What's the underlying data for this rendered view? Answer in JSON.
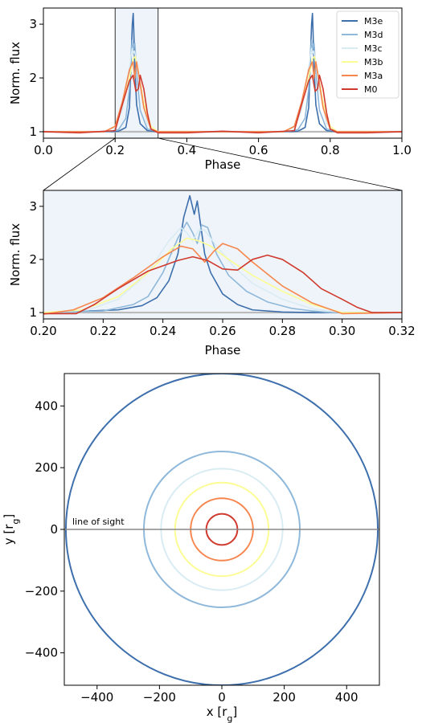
{
  "chart_data": [
    {
      "id": "full",
      "type": "line",
      "xlabel": "Phase",
      "ylabel": "Norm. flux",
      "xlim": [
        0.0,
        1.0
      ],
      "ylim": [
        0.88,
        3.3
      ],
      "xticks": [
        0.0,
        0.2,
        0.4,
        0.6,
        0.8,
        1.0
      ],
      "xtick_labels": [
        "0.0",
        "0.2",
        "0.4",
        "0.6",
        "0.8",
        "1.0"
      ],
      "yticks": [
        1,
        2,
        3
      ],
      "ytick_labels": [
        "1",
        "2",
        "3"
      ],
      "highlight_span": [
        0.2,
        0.32
      ],
      "legend": "top-right",
      "series": [
        {
          "name": "M3e",
          "color": "#3d6fad",
          "x": [
            0,
            0.18,
            0.21,
            0.23,
            0.24,
            0.245,
            0.248,
            0.2505,
            0.252,
            0.255,
            0.26,
            0.27,
            0.29,
            0.32,
            0.5,
            0.68,
            0.71,
            0.73,
            0.74,
            0.745,
            0.748,
            0.7505,
            0.752,
            0.755,
            0.76,
            0.77,
            0.79,
            0.82,
            1.0
          ],
          "y": [
            1,
            1,
            1.01,
            1.08,
            1.45,
            2.4,
            3.0,
            3.2,
            2.9,
            2.2,
            1.5,
            1.15,
            1.02,
            1,
            1,
            1,
            1.01,
            1.08,
            1.45,
            2.4,
            3.0,
            3.2,
            2.9,
            2.2,
            1.5,
            1.15,
            1.02,
            1,
            1
          ]
        },
        {
          "name": "M3d",
          "color": "#8fb8da",
          "x": [
            0,
            0.18,
            0.21,
            0.23,
            0.24,
            0.245,
            0.248,
            0.25,
            0.252,
            0.255,
            0.26,
            0.27,
            0.29,
            0.32,
            0.5,
            0.68,
            0.71,
            0.73,
            0.74,
            0.745,
            0.748,
            0.75,
            0.752,
            0.755,
            0.76,
            0.77,
            0.79,
            0.82,
            1.0
          ],
          "y": [
            1,
            1,
            1.04,
            1.25,
            1.8,
            2.5,
            2.7,
            2.45,
            2.6,
            2.65,
            2.1,
            1.4,
            1.05,
            1,
            1,
            1,
            1.04,
            1.25,
            1.8,
            2.5,
            2.7,
            2.45,
            2.6,
            2.65,
            2.1,
            1.4,
            1.05,
            1,
            1
          ]
        },
        {
          "name": "M3c",
          "color": "#d9ecf4",
          "x": [
            0,
            0.17,
            0.2,
            0.22,
            0.24,
            0.248,
            0.25,
            0.254,
            0.26,
            0.27,
            0.29,
            0.32,
            0.5,
            0.67,
            0.7,
            0.72,
            0.74,
            0.748,
            0.75,
            0.754,
            0.76,
            0.77,
            0.79,
            0.82,
            1.0
          ],
          "y": [
            1,
            1,
            1.08,
            1.4,
            2.2,
            2.55,
            2.45,
            2.5,
            2.3,
            1.8,
            1.15,
            1,
            1,
            1,
            1.08,
            1.4,
            2.2,
            2.55,
            2.45,
            2.5,
            2.3,
            1.8,
            1.15,
            1,
            1
          ]
        },
        {
          "name": "M3b",
          "color": "#fcfc95",
          "x": [
            0,
            0.17,
            0.2,
            0.22,
            0.24,
            0.25,
            0.256,
            0.265,
            0.28,
            0.3,
            0.32,
            0.5,
            0.67,
            0.7,
            0.72,
            0.74,
            0.75,
            0.756,
            0.765,
            0.78,
            0.8,
            0.82,
            1.0
          ],
          "y": [
            1,
            1,
            1.1,
            1.5,
            2.0,
            2.35,
            2.4,
            2.1,
            1.55,
            1.1,
            1,
            1,
            1,
            1.1,
            1.5,
            2.0,
            2.35,
            2.4,
            2.1,
            1.55,
            1.1,
            1,
            1
          ]
        },
        {
          "name": "M3a",
          "color": "#f7864e",
          "x": [
            0,
            0.17,
            0.2,
            0.22,
            0.24,
            0.25,
            0.255,
            0.26,
            0.27,
            0.28,
            0.3,
            0.32,
            0.5,
            0.67,
            0.7,
            0.72,
            0.74,
            0.75,
            0.755,
            0.76,
            0.77,
            0.78,
            0.8,
            0.82,
            1.0
          ],
          "y": [
            1,
            1,
            1.1,
            1.55,
            2.15,
            2.3,
            2.0,
            2.3,
            1.9,
            1.45,
            1.05,
            1,
            1,
            1,
            1.1,
            1.55,
            2.15,
            2.3,
            2.0,
            2.3,
            1.9,
            1.45,
            1.05,
            1,
            1
          ]
        },
        {
          "name": "M0",
          "color": "#d03a2e",
          "x": [
            0,
            0.1,
            0.2,
            0.22,
            0.24,
            0.25,
            0.258,
            0.265,
            0.27,
            0.28,
            0.29,
            0.3,
            0.32,
            0.4,
            0.5,
            0.6,
            0.7,
            0.72,
            0.74,
            0.75,
            0.758,
            0.765,
            0.77,
            0.78,
            0.79,
            0.8,
            0.82,
            0.9,
            1.0
          ],
          "y": [
            1,
            0.98,
            1.02,
            1.5,
            1.95,
            2.05,
            1.75,
            1.8,
            2.05,
            1.8,
            1.35,
            1.05,
            0.98,
            0.98,
            1.01,
            0.98,
            1.02,
            1.5,
            1.95,
            2.05,
            1.75,
            1.8,
            2.05,
            1.8,
            1.35,
            1.05,
            0.98,
            0.98,
            1
          ]
        }
      ]
    },
    {
      "id": "zoom",
      "type": "line",
      "xlabel": "Phase",
      "ylabel": "Norm. flux",
      "xlim": [
        0.2,
        0.32
      ],
      "ylim": [
        0.88,
        3.3
      ],
      "xticks": [
        0.2,
        0.22,
        0.24,
        0.26,
        0.28,
        0.3,
        0.32
      ],
      "xtick_labels": [
        "0.20",
        "0.22",
        "0.24",
        "0.26",
        "0.28",
        "0.30",
        "0.32"
      ],
      "yticks": [
        1,
        2,
        3
      ],
      "ytick_labels": [
        "1",
        "2",
        "3"
      ],
      "series": [
        {
          "name": "M3e",
          "color": "#3d6fad",
          "x": [
            0.2,
            0.225,
            0.233,
            0.238,
            0.242,
            0.245,
            0.247,
            0.249,
            0.2505,
            0.2515,
            0.2525,
            0.254,
            0.256,
            0.26,
            0.265,
            0.27,
            0.28,
            0.29,
            0.3,
            0.32
          ],
          "y": [
            1,
            1.05,
            1.13,
            1.28,
            1.6,
            2.1,
            2.8,
            3.2,
            2.85,
            3.1,
            2.7,
            2.1,
            1.75,
            1.35,
            1.15,
            1.05,
            1.01,
            1,
            1,
            1
          ]
        },
        {
          "name": "M3d",
          "color": "#8fb8da",
          "x": [
            0.2,
            0.22,
            0.23,
            0.235,
            0.24,
            0.245,
            0.248,
            0.25,
            0.2515,
            0.253,
            0.255,
            0.258,
            0.262,
            0.268,
            0.275,
            0.283,
            0.29,
            0.296,
            0.32
          ],
          "y": [
            1,
            1.03,
            1.15,
            1.3,
            1.75,
            2.4,
            2.7,
            2.5,
            2.3,
            2.65,
            2.6,
            2.1,
            1.7,
            1.4,
            1.2,
            1.08,
            1.03,
            1,
            1
          ]
        },
        {
          "name": "M3c",
          "color": "#d9ecf4",
          "x": [
            0.2,
            0.215,
            0.225,
            0.235,
            0.242,
            0.246,
            0.248,
            0.25,
            0.252,
            0.254,
            0.258,
            0.264,
            0.27,
            0.28,
            0.29,
            0.3,
            0.32
          ],
          "y": [
            1,
            1.05,
            1.25,
            1.75,
            2.35,
            2.6,
            2.5,
            2.35,
            2.55,
            2.55,
            2.25,
            1.85,
            1.55,
            1.25,
            1.07,
            1.0,
            1
          ]
        },
        {
          "name": "M3b",
          "color": "#fcfc95",
          "x": [
            0.2,
            0.213,
            0.225,
            0.235,
            0.243,
            0.248,
            0.252,
            0.256,
            0.262,
            0.27,
            0.28,
            0.29,
            0.3,
            0.32
          ],
          "y": [
            1,
            1.05,
            1.3,
            1.75,
            2.2,
            2.4,
            2.35,
            2.25,
            2.0,
            1.7,
            1.4,
            1.15,
            1.0,
            1
          ]
        },
        {
          "name": "M3a",
          "color": "#f7864e",
          "x": [
            0.2,
            0.21,
            0.22,
            0.23,
            0.24,
            0.246,
            0.25,
            0.254,
            0.257,
            0.26,
            0.265,
            0.27,
            0.28,
            0.29,
            0.3,
            0.32
          ],
          "y": [
            0.97,
            1.05,
            1.28,
            1.65,
            2.05,
            2.25,
            2.2,
            1.95,
            2.15,
            2.3,
            2.2,
            1.95,
            1.5,
            1.18,
            0.98,
            1
          ]
        },
        {
          "name": "M0",
          "color": "#d03a2e",
          "x": [
            0.2,
            0.211,
            0.217,
            0.225,
            0.235,
            0.245,
            0.25,
            0.255,
            0.26,
            0.265,
            0.27,
            0.275,
            0.28,
            0.287,
            0.293,
            0.3,
            0.305,
            0.31,
            0.32
          ],
          "y": [
            0.98,
            0.98,
            1.15,
            1.45,
            1.78,
            1.98,
            2.05,
            1.98,
            1.82,
            1.8,
            2.0,
            2.08,
            2.0,
            1.75,
            1.45,
            1.25,
            1.1,
            1.0,
            1
          ]
        }
      ]
    },
    {
      "id": "orbits",
      "type": "line",
      "xlabel": "x [rg]",
      "ylabel": "y [rg]",
      "xlim": [
        -505,
        505
      ],
      "ylim": [
        -505,
        505
      ],
      "xticks": [
        -400,
        -200,
        0,
        200,
        400
      ],
      "xtick_labels": [
        "−400",
        "−200",
        "0",
        "200",
        "400"
      ],
      "yticks": [
        -400,
        -200,
        0,
        200,
        400
      ],
      "ytick_labels": [
        "−400",
        "−200",
        "0",
        "200",
        "400"
      ],
      "annotation": "line of sight",
      "series": [
        {
          "name": "M3e",
          "color": "#3d6fad",
          "radius": 500
        },
        {
          "name": "M3d",
          "color": "#8fb8da",
          "radius": 250
        },
        {
          "name": "M3c",
          "color": "#d9ecf4",
          "radius": 195
        },
        {
          "name": "M3b",
          "color": "#fcfc95",
          "radius": 150
        },
        {
          "name": "M3a",
          "color": "#f7864e",
          "radius": 100
        },
        {
          "name": "M0",
          "color": "#d03a2e",
          "radius": 50
        }
      ]
    }
  ]
}
